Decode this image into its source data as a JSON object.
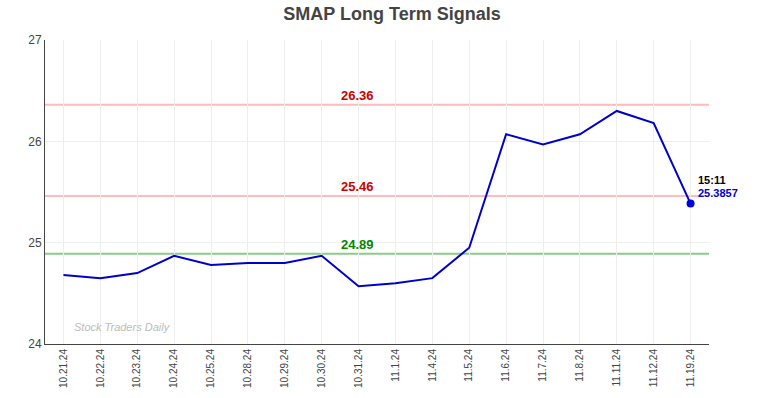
{
  "chart_data": {
    "type": "line",
    "title": "SMAP Long Term Signals",
    "categories": [
      "10.21.24",
      "10.22.24",
      "10.23.24",
      "10.24.24",
      "10.25.24",
      "10.28.24",
      "10.29.24",
      "10.30.24",
      "10.31.24",
      "11.1.24",
      "11.4.24",
      "11.5.24",
      "11.6.24",
      "11.7.24",
      "11.8.24",
      "11.11.24",
      "11.12.24",
      "11.19.24"
    ],
    "values": [
      24.68,
      24.65,
      24.7,
      24.87,
      24.78,
      24.8,
      24.8,
      24.87,
      24.57,
      24.6,
      24.65,
      24.95,
      26.07,
      25.97,
      26.07,
      26.3,
      26.18,
      25.3857
    ],
    "color": "#0000cc",
    "highlight_last": {
      "color": "#0000dd"
    },
    "ylim": [
      24.0,
      27.0
    ],
    "yticks": [
      24,
      25,
      26,
      27
    ],
    "grid": true,
    "reference_lines": [
      {
        "value": 26.36,
        "label": "26.36",
        "color": "#ffbbbb",
        "label_color": "#cc0000"
      },
      {
        "value": 25.46,
        "label": "25.46",
        "color": "#ffbbbb",
        "label_color": "#cc0000"
      },
      {
        "value": 24.89,
        "label": "24.89",
        "color": "#88cc88",
        "label_color": "#008800"
      }
    ],
    "annotations": [
      {
        "at": "11.19.24",
        "text": "15:11",
        "color": "#000000"
      },
      {
        "at": "11.19.24",
        "text": "25.3857",
        "color": "#0000cc"
      }
    ],
    "watermark": "Stock Traders Daily"
  }
}
